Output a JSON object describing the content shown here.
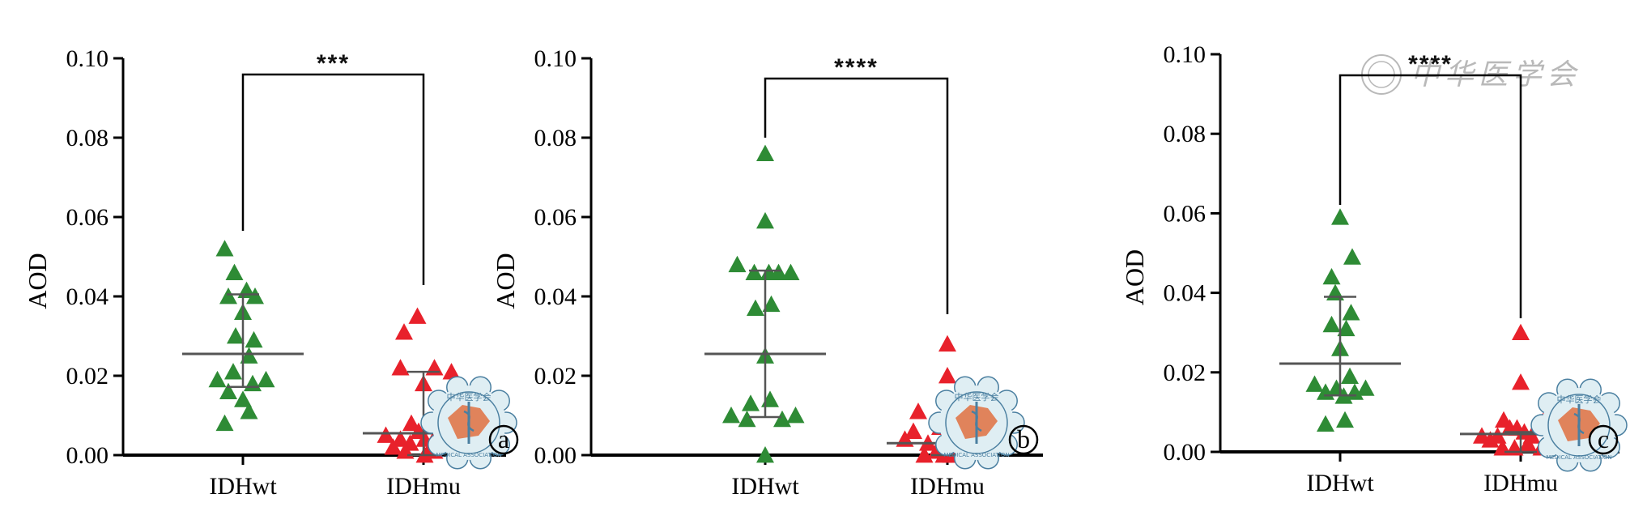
{
  "colors": {
    "wt": "#2e8b35",
    "mu": "#e8212b",
    "axis": "#000000",
    "summary": "#555555",
    "seal_fill": "#dfeef3",
    "seal_stroke": "#4a7fa0",
    "seal_accent": "#e07040",
    "watermark": "#b9b9b9"
  },
  "watermark_text": "中华医学会",
  "seal_text": {
    "top": "中华医学会",
    "bottom": "MEDICAL ASSOCIATION"
  },
  "chart_data": [
    {
      "type": "scatter",
      "panel_label": "a",
      "ylabel": "AOD",
      "ylim": [
        0,
        0.1
      ],
      "yticks": [
        "0.00",
        "0.02",
        "0.04",
        "0.06",
        "0.08",
        "0.10"
      ],
      "categories": [
        "IDHwt",
        "IDHmu"
      ],
      "significance": "***",
      "series": [
        {
          "category": "IDHwt",
          "mean": 0.0255,
          "sd_low": 0.0172,
          "sd_high": 0.0405,
          "points": [
            [
              -0.3,
              0.052
            ],
            [
              -0.14,
              0.046
            ],
            [
              0.06,
              0.0415
            ],
            [
              0.2,
              0.04
            ],
            [
              -0.24,
              0.04
            ],
            [
              0.0,
              0.036
            ],
            [
              0.18,
              0.029
            ],
            [
              -0.12,
              0.03
            ],
            [
              0.1,
              0.025
            ],
            [
              -0.42,
              0.019
            ],
            [
              0.38,
              0.019
            ],
            [
              -0.16,
              0.021
            ],
            [
              0.16,
              0.018
            ],
            [
              -0.24,
              0.016
            ],
            [
              0.0,
              0.014
            ],
            [
              0.1,
              0.011
            ],
            [
              -0.3,
              0.008
            ]
          ]
        },
        {
          "category": "IDHmu",
          "mean": 0.0055,
          "sd_low": 0.0,
          "sd_high": 0.021,
          "points": [
            [
              -0.1,
              0.035
            ],
            [
              -0.32,
              0.031
            ],
            [
              -0.38,
              0.022
            ],
            [
              0.18,
              0.022
            ],
            [
              0.46,
              0.021
            ],
            [
              0.0,
              0.018
            ],
            [
              -0.2,
              0.008
            ],
            [
              -0.62,
              0.005
            ],
            [
              -0.38,
              0.004
            ],
            [
              -0.22,
              0.003
            ],
            [
              -0.08,
              0.006
            ],
            [
              0.02,
              0.004
            ],
            [
              0.12,
              0.002
            ],
            [
              0.24,
              0.006
            ],
            [
              -0.5,
              0.002
            ],
            [
              -0.3,
              0.001
            ],
            [
              0.02,
              0.0
            ],
            [
              0.18,
              0.001
            ],
            [
              0.4,
              0.003
            ]
          ]
        }
      ]
    },
    {
      "type": "scatter",
      "panel_label": "b",
      "ylabel": "AOD",
      "ylim": [
        0,
        0.1
      ],
      "yticks": [
        "0.00",
        "0.02",
        "0.04",
        "0.06",
        "0.08",
        "0.10"
      ],
      "categories": [
        "IDHwt",
        "IDHmu"
      ],
      "significance": "****",
      "series": [
        {
          "category": "IDHwt",
          "mean": 0.0255,
          "sd_low": 0.0096,
          "sd_high": 0.0465,
          "points": [
            [
              0.0,
              0.076
            ],
            [
              0.0,
              0.059
            ],
            [
              -0.46,
              0.048
            ],
            [
              -0.18,
              0.046
            ],
            [
              0.06,
              0.046
            ],
            [
              0.22,
              0.046
            ],
            [
              0.42,
              0.046
            ],
            [
              -0.16,
              0.037
            ],
            [
              0.1,
              0.038
            ],
            [
              0.0,
              0.025
            ],
            [
              -0.24,
              0.013
            ],
            [
              0.08,
              0.014
            ],
            [
              -0.56,
              0.01
            ],
            [
              -0.3,
              0.009
            ],
            [
              0.28,
              0.009
            ],
            [
              0.5,
              0.01
            ],
            [
              0.0,
              0.0
            ]
          ]
        },
        {
          "category": "IDHmu",
          "mean": 0.003,
          "sd_low": 0.0,
          "sd_high": 0.003,
          "points": [
            [
              0.0,
              0.028
            ],
            [
              0.0,
              0.02
            ],
            [
              -0.48,
              0.011
            ],
            [
              -0.7,
              0.004
            ],
            [
              -0.56,
              0.006
            ],
            [
              -0.32,
              0.003
            ],
            [
              -0.18,
              0.001
            ],
            [
              -0.06,
              0.0
            ],
            [
              0.06,
              0.002
            ],
            [
              0.14,
              0.0
            ],
            [
              0.24,
              0.003
            ],
            [
              -0.12,
              0.007
            ],
            [
              0.32,
              0.001
            ],
            [
              0.42,
              0.004
            ],
            [
              0.52,
              0.002
            ],
            [
              -0.38,
              0.0
            ],
            [
              0.06,
              0.0
            ]
          ]
        }
      ]
    },
    {
      "type": "scatter",
      "panel_label": "c",
      "ylabel": "AOD",
      "ylim": [
        0,
        0.1
      ],
      "yticks": [
        "0.00",
        "0.02",
        "0.04",
        "0.06",
        "0.08",
        "0.10"
      ],
      "categories": [
        "IDHwt",
        "IDHmu"
      ],
      "significance": "****",
      "series": [
        {
          "category": "IDHwt",
          "mean": 0.0222,
          "sd_low": 0.0142,
          "sd_high": 0.039,
          "points": [
            [
              0.0,
              0.059
            ],
            [
              0.2,
              0.049
            ],
            [
              -0.14,
              0.044
            ],
            [
              -0.08,
              0.04
            ],
            [
              0.18,
              0.035
            ],
            [
              -0.14,
              0.032
            ],
            [
              0.1,
              0.031
            ],
            [
              0.0,
              0.026
            ],
            [
              -0.42,
              0.017
            ],
            [
              -0.24,
              0.015
            ],
            [
              -0.06,
              0.016
            ],
            [
              0.06,
              0.014
            ],
            [
              0.24,
              0.015
            ],
            [
              0.42,
              0.016
            ],
            [
              0.16,
              0.019
            ],
            [
              -0.24,
              0.007
            ],
            [
              0.08,
              0.008
            ]
          ]
        },
        {
          "category": "IDHmu",
          "mean": 0.0045,
          "sd_low": 0.0,
          "sd_high": 0.005,
          "points": [
            [
              0.0,
              0.03
            ],
            [
              0.0,
              0.0175
            ],
            [
              -0.28,
              0.008
            ],
            [
              -0.64,
              0.004
            ],
            [
              -0.5,
              0.003
            ],
            [
              -0.38,
              0.004
            ],
            [
              -0.18,
              0.006
            ],
            [
              -0.06,
              0.006
            ],
            [
              0.06,
              0.005
            ],
            [
              0.18,
              0.004
            ],
            [
              0.3,
              0.006
            ],
            [
              0.42,
              0.009
            ],
            [
              -0.3,
              0.001
            ],
            [
              -0.1,
              0.001
            ],
            [
              0.12,
              0.002
            ],
            [
              0.34,
              0.001
            ]
          ]
        }
      ]
    }
  ]
}
